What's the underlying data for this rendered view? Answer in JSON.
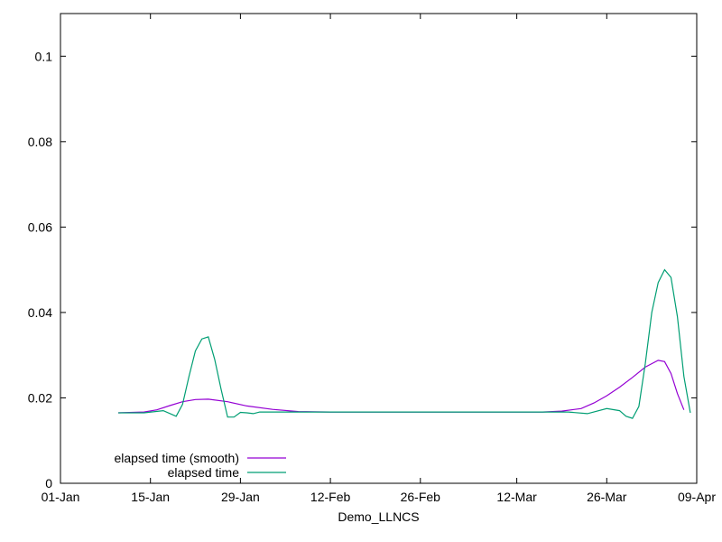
{
  "chart_data": {
    "type": "line",
    "title": "",
    "xlabel": "Demo_LLNCS",
    "ylabel": "",
    "xlim": [
      "2024-01-01",
      "2024-04-09"
    ],
    "ylim": [
      0,
      0.11
    ],
    "grid": false,
    "legend_position": "bottom-left",
    "x_ticks": [
      {
        "date": "2024-01-01",
        "label": "01-Jan"
      },
      {
        "date": "2024-01-15",
        "label": "15-Jan"
      },
      {
        "date": "2024-01-29",
        "label": "29-Jan"
      },
      {
        "date": "2024-02-12",
        "label": "12-Feb"
      },
      {
        "date": "2024-02-26",
        "label": "26-Feb"
      },
      {
        "date": "2024-03-12",
        "label": "12-Mar"
      },
      {
        "date": "2024-03-26",
        "label": "26-Mar"
      },
      {
        "date": "2024-04-09",
        "label": "09-Apr"
      }
    ],
    "y_ticks": [
      {
        "value": 0,
        "label": "0"
      },
      {
        "value": 0.02,
        "label": "0.02"
      },
      {
        "value": 0.04,
        "label": "0.04"
      },
      {
        "value": 0.06,
        "label": "0.06"
      },
      {
        "value": 0.08,
        "label": "0.08"
      },
      {
        "value": 0.1,
        "label": "0.1"
      }
    ],
    "series": [
      {
        "name": "elapsed time (smooth)",
        "color": "#9400d3",
        "points": [
          [
            "2024-01-10",
            0.0165
          ],
          [
            "2024-01-14",
            0.0167
          ],
          [
            "2024-01-16",
            0.0172
          ],
          [
            "2024-01-18",
            0.0182
          ],
          [
            "2024-01-20",
            0.0191
          ],
          [
            "2024-01-22",
            0.0196
          ],
          [
            "2024-01-24",
            0.0197
          ],
          [
            "2024-01-27",
            0.0191
          ],
          [
            "2024-01-30",
            0.0181
          ],
          [
            "2024-02-03",
            0.0173
          ],
          [
            "2024-02-07",
            0.0168
          ],
          [
            "2024-02-12",
            0.0167
          ],
          [
            "2024-03-16",
            0.0167
          ],
          [
            "2024-03-19",
            0.0169
          ],
          [
            "2024-03-22",
            0.0175
          ],
          [
            "2024-03-24",
            0.0188
          ],
          [
            "2024-03-26",
            0.0205
          ],
          [
            "2024-03-28",
            0.0225
          ],
          [
            "2024-03-30",
            0.0248
          ],
          [
            "2024-04-01",
            0.0272
          ],
          [
            "2024-04-03",
            0.0288
          ],
          [
            "2024-04-04",
            0.0285
          ],
          [
            "2024-04-05",
            0.0257
          ],
          [
            "2024-04-06",
            0.021
          ],
          [
            "2024-04-07",
            0.0172
          ]
        ]
      },
      {
        "name": "elapsed time",
        "color": "#009e73",
        "points": [
          [
            "2024-01-10",
            0.0165
          ],
          [
            "2024-01-14",
            0.0165
          ],
          [
            "2024-01-17",
            0.017
          ],
          [
            "2024-01-19",
            0.0157
          ],
          [
            "2024-01-20",
            0.0185
          ],
          [
            "2024-01-21",
            0.025
          ],
          [
            "2024-01-22",
            0.031
          ],
          [
            "2024-01-23",
            0.0338
          ],
          [
            "2024-01-24",
            0.0343
          ],
          [
            "2024-01-25",
            0.029
          ],
          [
            "2024-01-26",
            0.022
          ],
          [
            "2024-01-27",
            0.0155
          ],
          [
            "2024-01-28",
            0.0155
          ],
          [
            "2024-01-29",
            0.0166
          ],
          [
            "2024-01-30",
            0.0165
          ],
          [
            "2024-01-31",
            0.0163
          ],
          [
            "2024-02-01",
            0.0167
          ],
          [
            "2024-03-20",
            0.0167
          ],
          [
            "2024-03-23",
            0.0163
          ],
          [
            "2024-03-26",
            0.0175
          ],
          [
            "2024-03-28",
            0.017
          ],
          [
            "2024-03-29",
            0.0157
          ],
          [
            "2024-03-30",
            0.0152
          ],
          [
            "2024-03-31",
            0.018
          ],
          [
            "2024-04-01",
            0.028
          ],
          [
            "2024-04-02",
            0.04
          ],
          [
            "2024-04-03",
            0.047
          ],
          [
            "2024-04-04",
            0.05
          ],
          [
            "2024-04-05",
            0.0482
          ],
          [
            "2024-04-06",
            0.039
          ],
          [
            "2024-04-07",
            0.025
          ],
          [
            "2024-04-08",
            0.0165
          ]
        ]
      }
    ]
  }
}
